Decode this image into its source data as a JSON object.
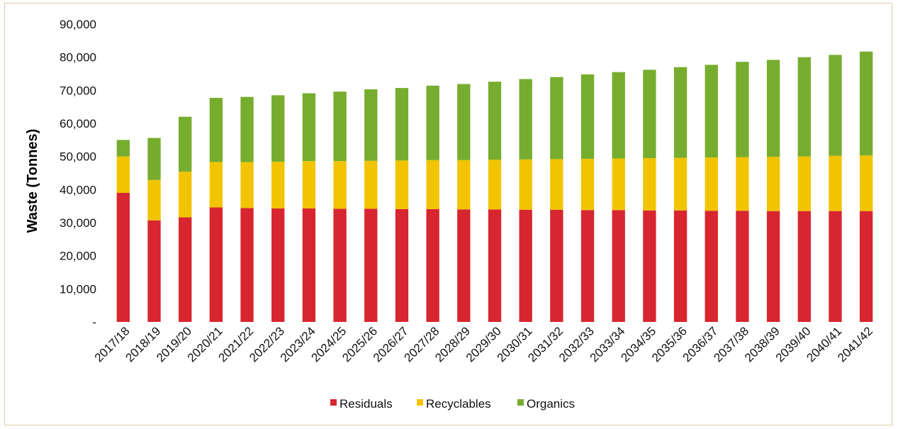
{
  "chart_data": {
    "type": "bar",
    "stacked": true,
    "title": "",
    "xlabel": "",
    "ylabel": "Waste (Tonnes)",
    "ylim": [
      0,
      90000
    ],
    "yticks": [
      0,
      10000,
      20000,
      30000,
      40000,
      50000,
      60000,
      70000,
      80000,
      90000
    ],
    "ytick_labels": [
      "-",
      "10,000",
      "20,000",
      "30,000",
      "40,000",
      "50,000",
      "60,000",
      "70,000",
      "80,000",
      "90,000"
    ],
    "grid": false,
    "legend_position": "bottom",
    "categories": [
      "2017/18",
      "2018/19",
      "2019/20",
      "2020/21",
      "2021/22",
      "2022/23",
      "2023/24",
      "2024/25",
      "2025/26",
      "2026/27",
      "2027/28",
      "2028/29",
      "2029/30",
      "2030/31",
      "2031/32",
      "2032/33",
      "2033/34",
      "2034/35",
      "2035/36",
      "2036/37",
      "2037/38",
      "2038/39",
      "2039/40",
      "2040/41",
      "2041/42"
    ],
    "series": [
      {
        "name": "Residuals",
        "color": "#d7262f",
        "values": [
          39000,
          30700,
          31600,
          34600,
          34400,
          34300,
          34300,
          34200,
          34200,
          34100,
          34100,
          34000,
          34000,
          33900,
          33900,
          33800,
          33800,
          33700,
          33700,
          33600,
          33600,
          33500,
          33500,
          33500,
          33500
        ]
      },
      {
        "name": "Recyclables",
        "color": "#f2c400",
        "values": [
          11000,
          12200,
          13800,
          13700,
          13900,
          14100,
          14300,
          14400,
          14500,
          14700,
          14800,
          14900,
          15000,
          15200,
          15300,
          15500,
          15600,
          15800,
          15900,
          16100,
          16200,
          16400,
          16500,
          16700,
          16800
        ]
      },
      {
        "name": "Organics",
        "color": "#77ad2e",
        "values": [
          5000,
          12700,
          16600,
          19400,
          19700,
          20100,
          20500,
          21000,
          21600,
          21900,
          22500,
          23000,
          23600,
          24300,
          24800,
          25500,
          26100,
          26700,
          27400,
          28000,
          28800,
          29300,
          30000,
          30500,
          31400
        ]
      }
    ]
  }
}
